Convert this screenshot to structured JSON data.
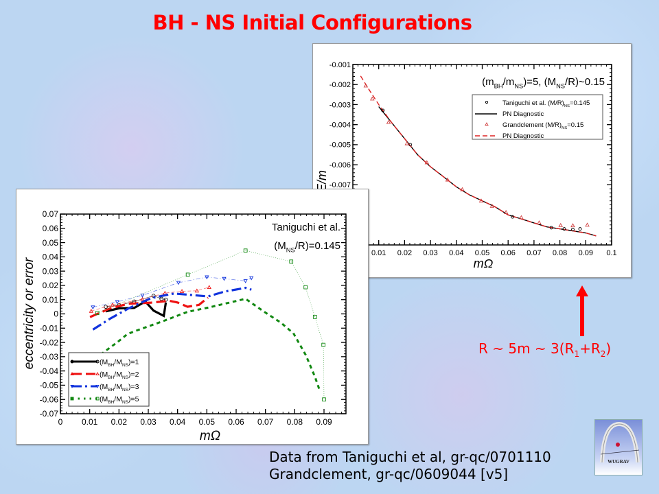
{
  "slide": {
    "title": "BH - NS Initial Configurations",
    "note": {
      "pre": "R ~ 5m ~ 3(R",
      "s1": "1",
      "mid": "+R",
      "s2": "2",
      "post": ")"
    },
    "credits": [
      "Data from Taniguchi et al, gr-qc/0701110",
      "Grandclement, gr-qc/0609044 [v5]"
    ],
    "logo_text": "WUGRAV",
    "colors": {
      "title": "#ff0000",
      "arrow": "#ff0000"
    }
  },
  "chart_data": [
    {
      "type": "line",
      "title": "",
      "annotation": "(m_{BH}/m_{NS})=5, (M_{NS}/R)~0.15",
      "xlabel": "mΩ",
      "ylabel": "E/m",
      "xlim": [
        0,
        0.1
      ],
      "ylim": [
        -0.01,
        -0.001
      ],
      "xticks": [
        0.01,
        0.02,
        0.03,
        0.04,
        0.05,
        0.06,
        0.07,
        0.08,
        0.09,
        0.1
      ],
      "xtick_labels": [
        "0.01",
        "0.02",
        "0.03",
        "0.04",
        "0.05",
        "0.06",
        "0.07",
        "0.08",
        "0.09",
        "0.1"
      ],
      "yticks": [
        -0.001,
        -0.002,
        -0.003,
        -0.004,
        -0.005,
        -0.006,
        -0.007
      ],
      "ytick_labels": [
        "-0.001",
        "-0.002",
        "-0.003",
        "-0.004",
        "-0.005",
        "-0.006",
        "-0.007"
      ],
      "legend_position": "top-right",
      "series": [
        {
          "name": "Taniguchi et al. (M/R)_{NS}=0.145",
          "style": "circle",
          "color": "#000000",
          "x": [
            0.0116,
            0.0222,
            0.0617,
            0.0767,
            0.0817,
            0.085,
            0.0878
          ],
          "y": [
            -0.00329,
            -0.005,
            -0.0086,
            -0.00914,
            -0.0092,
            -0.00923,
            -0.0092
          ]
        },
        {
          "name": "PN Diagnostic",
          "style": "solid",
          "color": "#000000",
          "x": [
            0.01,
            0.015,
            0.02,
            0.025,
            0.03,
            0.035,
            0.04,
            0.045,
            0.05,
            0.055,
            0.06,
            0.065,
            0.07,
            0.075,
            0.08,
            0.085,
            0.09,
            0.094
          ],
          "y": [
            -0.0031,
            -0.0039,
            -0.0047,
            -0.0055,
            -0.0061,
            -0.0066,
            -0.0071,
            -0.0075,
            -0.0078,
            -0.0081,
            -0.0085,
            -0.0087,
            -0.0089,
            -0.0091,
            -0.0092,
            -0.0093,
            -0.0094,
            -0.00955
          ]
        },
        {
          "name": "Grandclement (M/R)_{NS}=0.15",
          "style": "triangle",
          "color": "#d04040",
          "x": [
            0.005,
            0.0075,
            0.0138,
            0.0209,
            0.0286,
            0.0366,
            0.0423,
            0.0496,
            0.0538,
            0.0592,
            0.0651,
            0.072,
            0.0803,
            0.085,
            0.0906
          ],
          "y": [
            -0.00206,
            -0.00271,
            -0.00388,
            -0.00494,
            -0.00589,
            -0.00675,
            -0.00723,
            -0.0078,
            -0.00806,
            -0.00837,
            -0.00863,
            -0.00889,
            -0.00902,
            -0.00903,
            -0.009
          ]
        },
        {
          "name": "PN Diagnostic",
          "style": "dashed",
          "color": "#dd2222",
          "x": [
            0.003,
            0.006,
            0.01,
            0.015,
            0.02,
            0.025,
            0.03,
            0.035,
            0.04,
            0.045,
            0.05,
            0.055,
            0.06,
            0.065,
            0.07,
            0.075,
            0.08,
            0.085,
            0.09,
            0.094
          ],
          "y": [
            -0.00157,
            -0.0022,
            -0.003,
            -0.0039,
            -0.0047,
            -0.0055,
            -0.0061,
            -0.0066,
            -0.0071,
            -0.0075,
            -0.0078,
            -0.0081,
            -0.0085,
            -0.0087,
            -0.0089,
            -0.0091,
            -0.0092,
            -0.0093,
            -0.0094,
            -0.00955
          ]
        }
      ]
    },
    {
      "type": "line",
      "title": "",
      "annotation": [
        "Taniguchi et al.",
        "(M_{NS}/R)=0.145"
      ],
      "xlabel": "mΩ",
      "ylabel": "eccentricity or error",
      "xlim": [
        0,
        0.0975
      ],
      "ylim": [
        -0.07,
        0.07
      ],
      "xticks": [
        0,
        0.01,
        0.02,
        0.03,
        0.04,
        0.05,
        0.06,
        0.07,
        0.08,
        0.09
      ],
      "xtick_labels": [
        "0",
        "0.01",
        "0.02",
        "0.03",
        "0.04",
        "0.05",
        "0.06",
        "0.07",
        "0.08",
        "0.09"
      ],
      "yticks": [
        0.07,
        0.06,
        0.05,
        0.04,
        0.03,
        0.02,
        0.01,
        0,
        -0.01,
        -0.02,
        -0.03,
        -0.04,
        -0.05,
        -0.06,
        -0.07
      ],
      "ytick_labels": [
        "0.07",
        "0.06",
        "0.05",
        "0.04",
        "0.03",
        "0.02",
        "0.01",
        "0",
        "-0.01",
        "-0.02",
        "-0.03",
        "-0.04",
        "-0.05",
        "-0.06",
        "-0.07"
      ],
      "legend_position": "bottom-left",
      "series": [
        {
          "name": "(M_{BH}/M_{NS})=1",
          "color": "#000000",
          "style": "solid",
          "marker": "circle",
          "eccentricity": {
            "x": [
              0.0155,
              0.02,
              0.0252,
              0.029,
              0.0318,
              0.0353,
              0.036
            ],
            "y": [
              0.0018,
              0.0039,
              0.0042,
              0.0087,
              0.0023,
              -0.0014,
              0.008
            ]
          },
          "error": {
            "x": [
              0.0155,
              0.02,
              0.0252,
              0.0318,
              0.0345,
              0.036
            ],
            "y": [
              0.005,
              0.006,
              0.0087,
              0.0127,
              0.0106,
              0.01
            ]
          }
        },
        {
          "name": "(M_{BH}/M_{NS})=2",
          "color": "#ee1111",
          "style": "dashed",
          "marker": "triangle",
          "eccentricity": {
            "x": [
              0.0101,
              0.017,
              0.0233,
              0.031,
              0.0372,
              0.04,
              0.0434,
              0.0473,
              0.0504
            ],
            "y": [
              -0.0022,
              0.0039,
              0.0071,
              0.0079,
              0.0092,
              0.008,
              0.005,
              0.0063,
              0.0114
            ]
          },
          "error": {
            "x": [
              0.0105,
              0.0178,
              0.028,
              0.0357,
              0.0415,
              0.0466,
              0.0508
            ],
            "y": [
              0.002,
              0.0063,
              0.0103,
              0.0146,
              0.0159,
              0.0162,
              0.0187
            ]
          }
        },
        {
          "name": "(M_{BH}/M_{NS})=3",
          "color": "#1133dd",
          "style": "dashdot",
          "marker": "down-triangle",
          "eccentricity": {
            "x": [
              0.0111,
              0.017,
              0.0233,
              0.031,
              0.0388,
              0.0434,
              0.0504,
              0.0559,
              0.0632,
              0.0652
            ],
            "y": [
              -0.011,
              -0.0033,
              0.0039,
              0.0111,
              0.0143,
              0.0135,
              0.0122,
              0.0156,
              0.0183,
              0.017
            ]
          },
          "error": {
            "x": [
              0.0111,
              0.0194,
              0.028,
              0.0403,
              0.05,
              0.0559,
              0.0632,
              0.0652
            ],
            "y": [
              0.0047,
              0.0084,
              0.013,
              0.0219,
              0.0258,
              0.0247,
              0.0231,
              0.0252
            ]
          }
        },
        {
          "name": "(M_{BH}/M_{NS})=5",
          "color": "#118811",
          "style": "dotted",
          "marker": "square",
          "eccentricity": {
            "x": [
              0.014,
              0.0198,
              0.0229,
              0.0272,
              0.0349,
              0.0435,
              0.0504,
              0.0632,
              0.0698,
              0.0753,
              0.0796,
              0.0838,
              0.0869,
              0.0888
            ],
            "y": [
              -0.0281,
              -0.0193,
              -0.0141,
              -0.0108,
              -0.0052,
              0.0015,
              0.0044,
              0.0106,
              0.0012,
              -0.0062,
              -0.0137,
              -0.0289,
              -0.0441,
              -0.0553
            ]
          },
          "error": {
            "x": [
              0.0126,
              0.0435,
              0.0632,
              0.0788,
              0.0837,
              0.0869,
              0.0898,
              0.09
            ],
            "y": [
              0.0006,
              0.0275,
              0.0444,
              0.0367,
              0.0187,
              -0.0021,
              -0.0217,
              -0.06
            ]
          }
        }
      ]
    }
  ]
}
